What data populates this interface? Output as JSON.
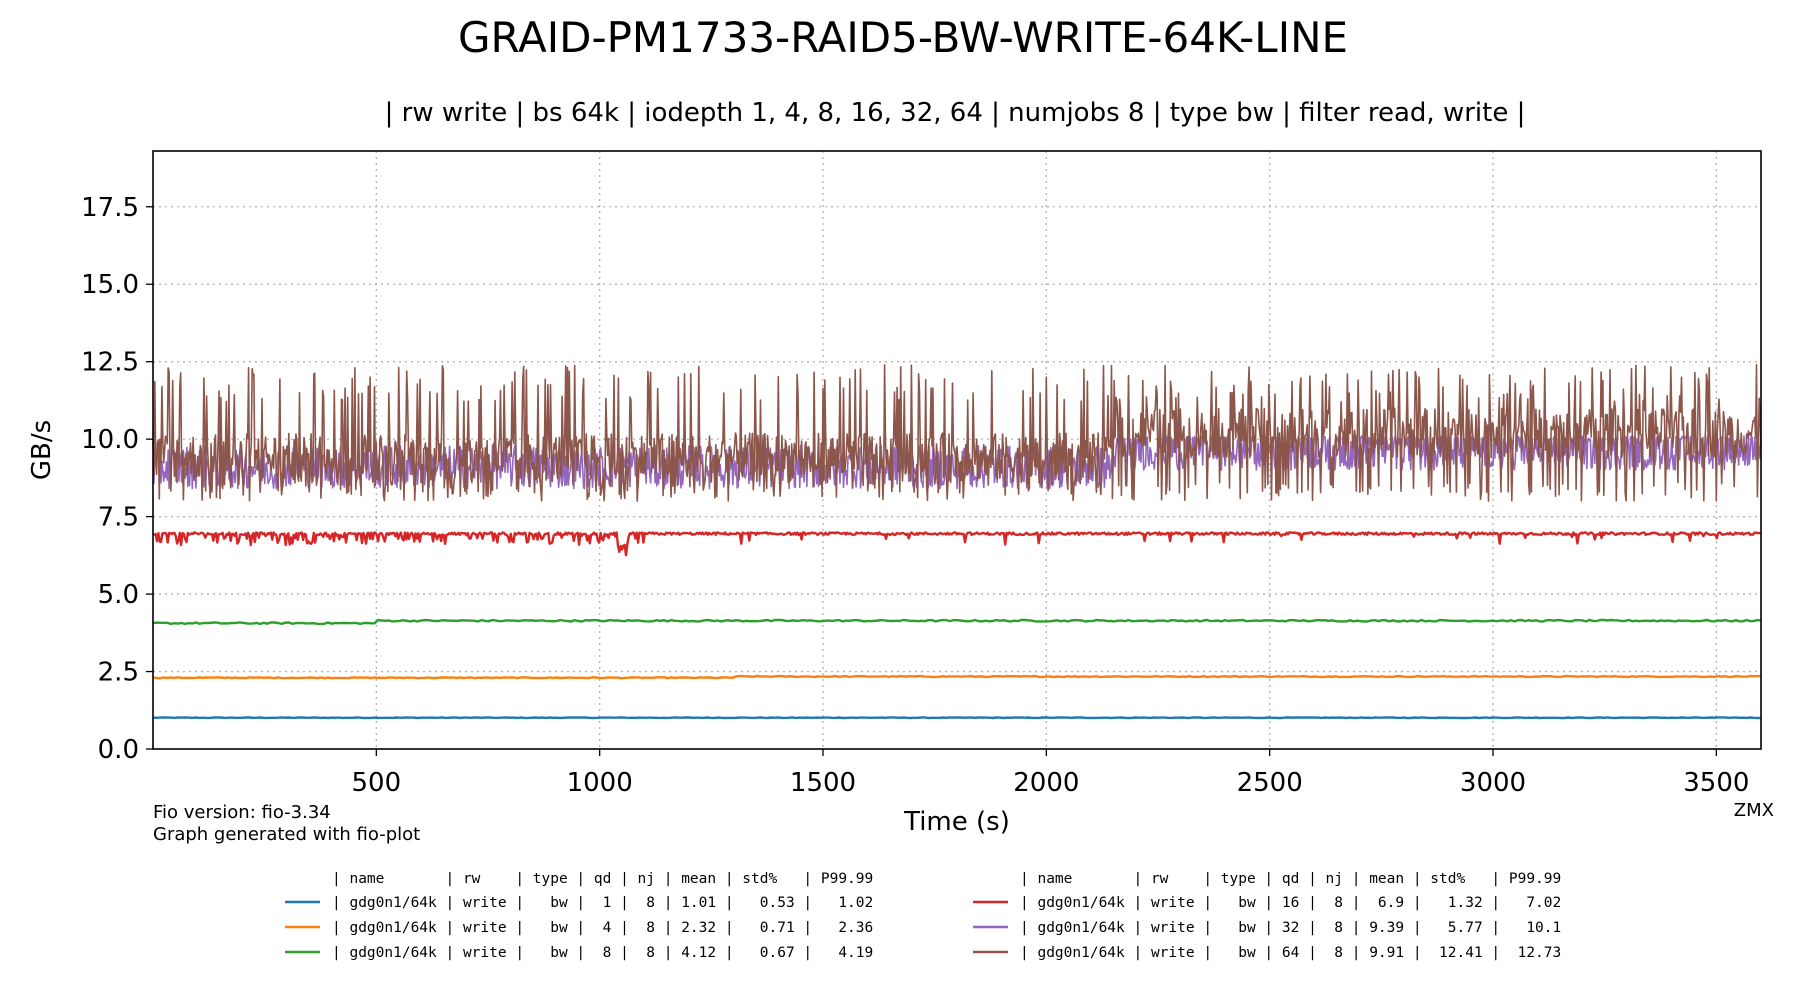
{
  "chart_data": {
    "type": "line",
    "title": "GRAID-PM1733-RAID5-BW-WRITE-64K-LINE",
    "subtitle": "| rw write | bs 64k | iodepth 1, 4, 8, 16, 32, 64 | numjobs 8 | type bw | filter read, write |",
    "xlabel": "Time (s)",
    "ylabel": "GB/s",
    "xlim": [
      0,
      3600
    ],
    "ylim": [
      0,
      19.3
    ],
    "xticks": [
      "500",
      "1000",
      "1500",
      "2000",
      "2500",
      "3000",
      "3500"
    ],
    "yticks": [
      "0.0",
      "2.5",
      "5.0",
      "7.5",
      "10.0",
      "12.5",
      "15.0",
      "17.5"
    ],
    "grid": true,
    "legend_placement": "below",
    "legend_header": "| name       | rw    | type | qd | nj | mean | std%   | P99.99",
    "series": [
      {
        "name": "| gdg0n1/64k | write |   bw |  1 |  8 | 1.01 |   0.53 |   1.02",
        "color": "#1f77b4",
        "qd": 1,
        "mean": 1.01,
        "std_pct": 0.53,
        "p9999": 1.02
      },
      {
        "name": "| gdg0n1/64k | write |   bw |  4 |  8 | 2.32 |   0.71 |   2.36",
        "color": "#ff7f0e",
        "qd": 4,
        "mean": 2.32,
        "std_pct": 0.71,
        "p9999": 2.36
      },
      {
        "name": "| gdg0n1/64k | write |   bw |  8 |  8 | 4.12 |   0.67 |   4.19",
        "color": "#2ca02c",
        "qd": 8,
        "mean": 4.12,
        "std_pct": 0.67,
        "p9999": 4.19
      },
      {
        "name": "| gdg0n1/64k | write |   bw | 16 |  8 |  6.9 |   1.32 |   7.02",
        "color": "#d62728",
        "qd": 16,
        "mean": 6.9,
        "std_pct": 1.32,
        "p9999": 7.02
      },
      {
        "name": "| gdg0n1/64k | write |   bw | 32 |  8 | 9.39 |   5.77 |   10.1",
        "color": "#9467bd",
        "qd": 32,
        "mean": 9.39,
        "std_pct": 5.77,
        "p9999": 10.1
      },
      {
        "name": "| gdg0n1/64k | write |   bw | 64 |  8 | 9.91 |  12.41 |  12.73",
        "color": "#8c564b",
        "qd": 64,
        "mean": 9.91,
        "std_pct": 12.41,
        "p9999": 12.73
      }
    ]
  },
  "footer": {
    "fio_version": "Fio version: fio-3.34",
    "generated": "Graph generated with fio-plot",
    "mark": "ZMX"
  }
}
